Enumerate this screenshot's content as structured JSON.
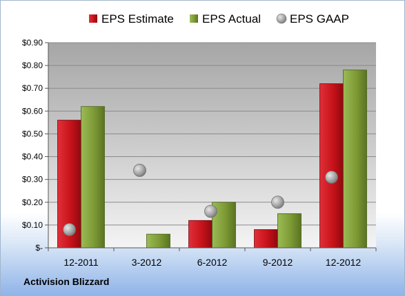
{
  "company_label": "Activision Blizzard",
  "colors": {
    "estimate": "#c8121a",
    "actual": "#7d9a35",
    "gaap": "#a8a8a8"
  },
  "chart_data": {
    "type": "bar",
    "categories": [
      "12-2011",
      "3-2012",
      "6-2012",
      "9-2012",
      "12-2012"
    ],
    "series": [
      {
        "name": "EPS Estimate",
        "kind": "bar",
        "values": [
          0.56,
          null,
          0.12,
          0.08,
          0.72
        ]
      },
      {
        "name": "EPS Actual",
        "kind": "bar",
        "values": [
          0.62,
          0.06,
          0.2,
          0.15,
          0.78
        ]
      },
      {
        "name": "EPS GAAP",
        "kind": "scatter",
        "values": [
          0.08,
          0.34,
          0.16,
          0.2,
          0.31
        ]
      }
    ],
    "yticks": [
      "$-",
      "$0.10",
      "$0.20",
      "$0.30",
      "$0.40",
      "$0.50",
      "$0.60",
      "$0.70",
      "$0.80",
      "$0.90"
    ],
    "ylim": [
      0,
      0.9
    ],
    "legend_position": "top",
    "grid": true
  }
}
